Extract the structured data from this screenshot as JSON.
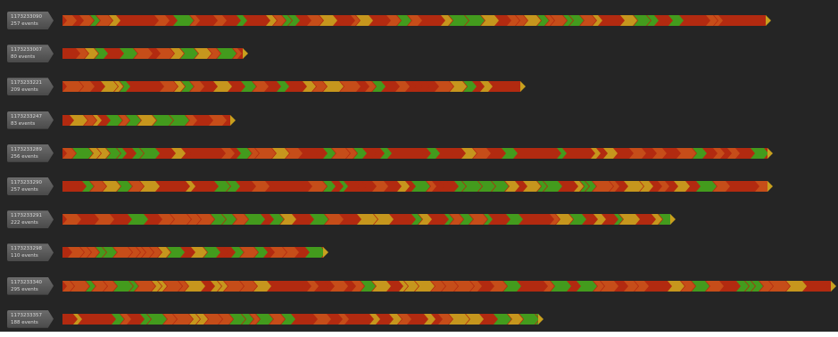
{
  "rows": [
    {
      "id": "1173233090",
      "events": "257 events",
      "progress": 0.916
    },
    {
      "id": "1173233007",
      "events": "80 events",
      "progress": 0.242
    },
    {
      "id": "1173233221",
      "events": "209 events",
      "progress": 0.599
    },
    {
      "id": "1173233247",
      "events": "83 events",
      "progress": 0.226
    },
    {
      "id": "1173233289",
      "events": "256 events",
      "progress": 0.918
    },
    {
      "id": "1173233290",
      "events": "257 events",
      "progress": 0.918
    },
    {
      "id": "1173233291",
      "events": "222 events",
      "progress": 0.793
    },
    {
      "id": "1173233298",
      "events": "110 events",
      "progress": 0.345
    },
    {
      "id": "1173233340",
      "events": "295 events",
      "progress": 1.0
    },
    {
      "id": "1173233357",
      "events": "188 events",
      "progress": 0.623
    }
  ],
  "colors": {
    "background": "#252525",
    "chevron_red": "#b22a10",
    "chevron_orange": "#c8501a",
    "chevron_yellow": "#c8a01e",
    "chevron_green": "#3aa51e"
  }
}
